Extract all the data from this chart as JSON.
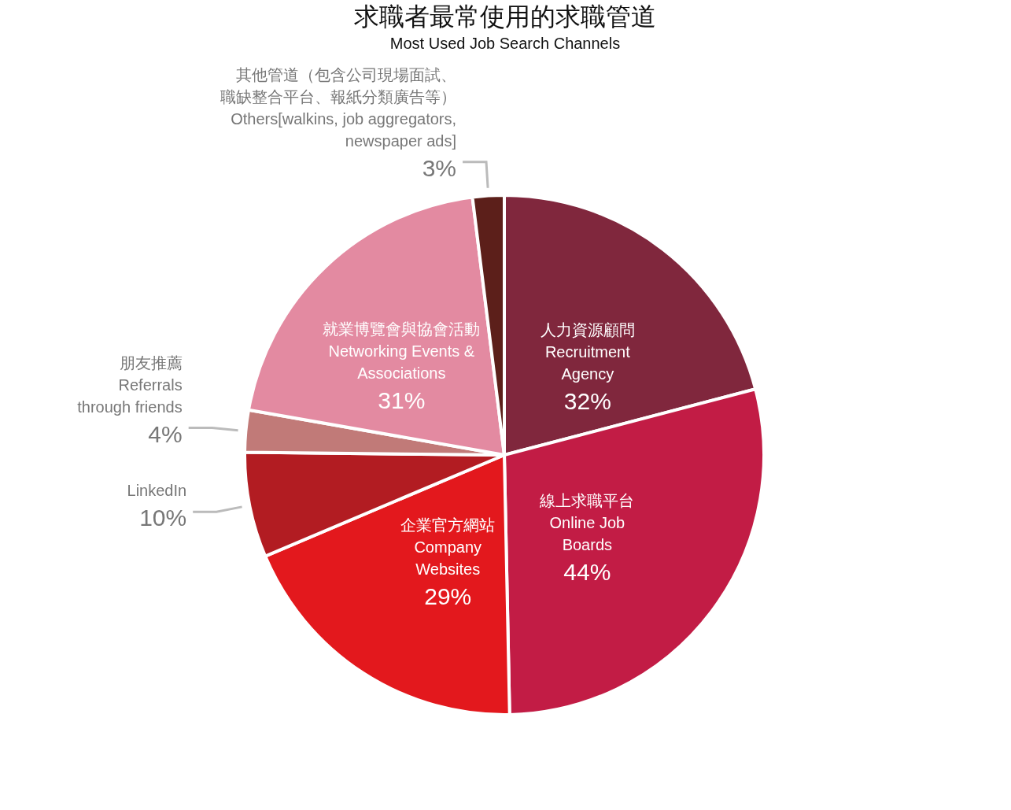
{
  "chart_data": {
    "type": "pie",
    "title": "求職者最常使用的求職管道",
    "subtitle": "Most Used Job Search Channels",
    "categories": [
      "人力資源顧問\nRecruitment\nAgency",
      "線上求職平台\nOnline Job\nBoards",
      "企業官方網站\nCompany\nWebsites",
      "LinkedIn",
      "朋友推薦\nReferrals\nthrough friends",
      "就業博覽會與協會活動\nNetworking Events &\nAssociations",
      "其他管道（包含公司現場面試、職缺整合平台、報紙分類廣告等）\nOthers[walkins, job aggregators,\nnewspaper ads]"
    ],
    "values": [
      32,
      44,
      29,
      10,
      4,
      31,
      3
    ],
    "value_labels": [
      "32%",
      "44%",
      "29%",
      "10%",
      "4%",
      "31%",
      "3%"
    ],
    "colors": [
      "#80273d",
      "#c21c45",
      "#e3181d",
      "#b21c22",
      "#c17a78",
      "#e38aa1",
      "#5c1f1a"
    ]
  }
}
